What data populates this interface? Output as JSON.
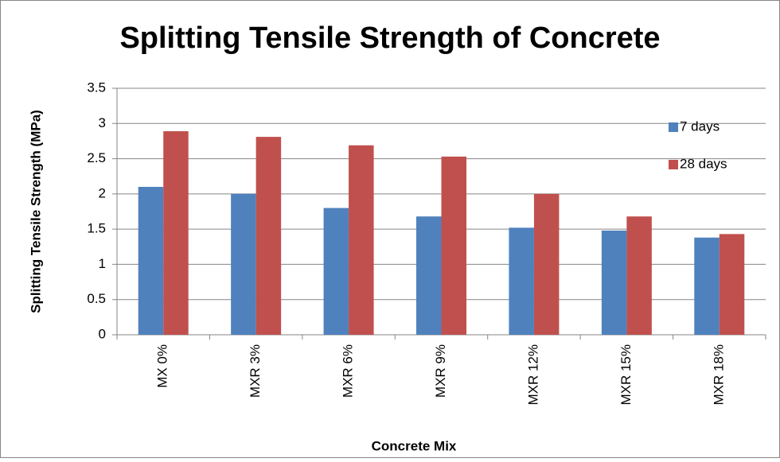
{
  "chart_data": {
    "type": "bar",
    "title": "Splitting Tensile Strength of Concrete",
    "x_label": "Concrete Mix",
    "y_label": "Splitting Tensile Strength (MPa)",
    "categories": [
      "MX 0%",
      "MXR 3%",
      "MXR 6%",
      "MXR 9%",
      "MXR 12%",
      "MXR 15%",
      "MXR 18%"
    ],
    "series": [
      {
        "name": "7 days",
        "color": "#4f81bd",
        "values": [
          2.1,
          2.0,
          1.8,
          1.68,
          1.52,
          1.48,
          1.38
        ]
      },
      {
        "name": "28 days",
        "color": "#c0504d",
        "values": [
          2.89,
          2.81,
          2.69,
          2.53,
          2.0,
          1.68,
          1.43
        ]
      }
    ],
    "ylim": [
      0,
      3.5
    ],
    "yticks": [
      0,
      0.5,
      1,
      1.5,
      2,
      2.5,
      3,
      3.5
    ],
    "grid": true,
    "legend": "right"
  }
}
